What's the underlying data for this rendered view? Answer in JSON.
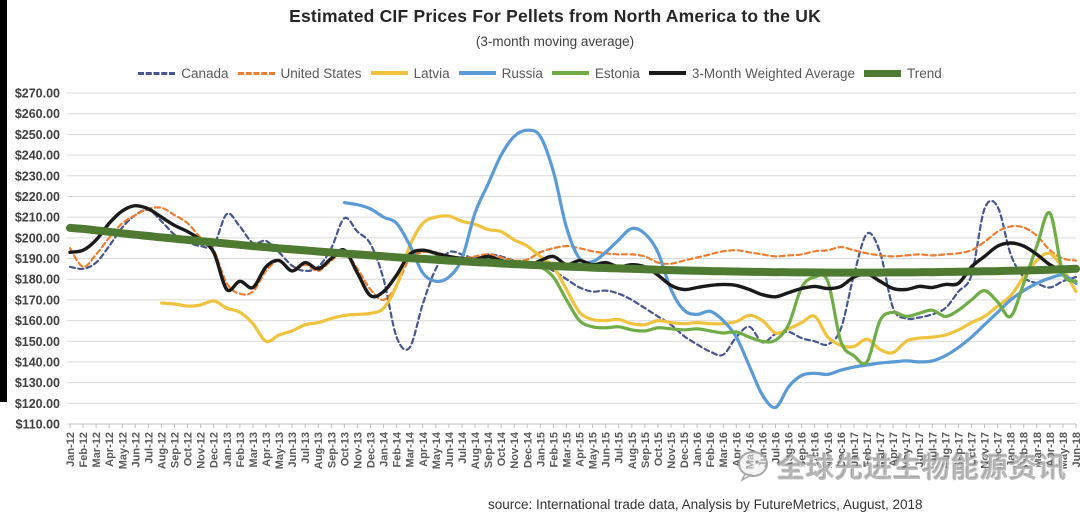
{
  "header": {
    "title": "Estimated CIF Prices For Pellets from North America to the UK",
    "subtitle": "(3-month moving average)"
  },
  "footer": {
    "source": "source: International trade data, Analysis by FutureMetrics, August, 2018"
  },
  "watermark": {
    "icon": "wechat-bubble-icon",
    "text": "全球先进生物能源资讯"
  },
  "chart_data": {
    "type": "line",
    "title": "Estimated CIF Prices For Pellets from North America to the UK",
    "subtitle": "(3-month moving average)",
    "legend_position": "top",
    "grid": true,
    "gridline_color": "#d9d9d9",
    "axis_text_color": "#595959",
    "ylim": [
      110,
      270
    ],
    "y_step": 10,
    "y_labels": [
      "$270.00",
      "$260.00",
      "$250.00",
      "$240.00",
      "$230.00",
      "$220.00",
      "$210.00",
      "$200.00",
      "$190.00",
      "$180.00",
      "$170.00",
      "$160.00",
      "$150.00",
      "$140.00",
      "$130.00",
      "$120.00",
      "$110.00"
    ],
    "x": [
      "Jan-12",
      "Feb-12",
      "Mar-12",
      "Apr-12",
      "May-12",
      "Jun-12",
      "Jul-12",
      "Aug-12",
      "Sep-12",
      "Oct-12",
      "Nov-12",
      "Dec-12",
      "Jan-13",
      "Feb-13",
      "Mar-13",
      "Apr-13",
      "May-13",
      "Jun-13",
      "Jul-13",
      "Aug-13",
      "Sep-13",
      "Oct-13",
      "Nov-13",
      "Dec-13",
      "Jan-14",
      "Feb-14",
      "Mar-14",
      "Apr-14",
      "May-14",
      "Jun-14",
      "Jul-14",
      "Aug-14",
      "Sep-14",
      "Oct-14",
      "Nov-14",
      "Dec-14",
      "Jan-15",
      "Feb-15",
      "Mar-15",
      "Apr-15",
      "May-15",
      "Jun-15",
      "Jul-15",
      "Aug-15",
      "Sep-15",
      "Oct-15",
      "Nov-15",
      "Dec-15",
      "Jan-16",
      "Feb-16",
      "Mar-16",
      "Apr-16",
      "May-16",
      "Jun-16",
      "Jul-16",
      "Aug-16",
      "Sep-16",
      "Oct-16",
      "Nov-16",
      "Dec-16",
      "Jan-17",
      "Feb-17",
      "Mar-17",
      "Apr-17",
      "May-17",
      "Jun-17",
      "Jul-17",
      "Aug-17",
      "Sep-17",
      "Oct-17",
      "Nov-17",
      "Dec-17",
      "Jan-18",
      "Feb-18",
      "Mar-18",
      "Apr-18",
      "May-18",
      "Jun-18"
    ],
    "series": [
      {
        "name": "Canada",
        "color": "#47568c",
        "dash": true,
        "width": 2.2,
        "values": [
          186,
          185,
          188,
          196,
          205,
          211,
          213.5,
          208,
          201.5,
          198,
          196,
          196.5,
          211.5,
          205.5,
          197.5,
          198.5,
          193,
          186.5,
          184,
          186,
          195,
          209.5,
          203,
          197,
          180,
          152,
          147,
          168,
          185,
          193,
          192,
          190,
          192,
          191,
          189,
          188,
          187,
          184,
          180,
          176,
          174,
          174.5,
          173,
          170,
          166,
          162,
          158,
          152.5,
          148.5,
          145,
          143.5,
          152,
          157,
          149.5,
          153.5,
          154.5,
          151.5,
          150,
          148.5,
          156,
          182,
          202,
          193,
          166,
          161,
          161.5,
          163,
          166,
          174,
          182,
          214,
          215,
          192,
          181,
          178,
          176,
          179,
          181
        ]
      },
      {
        "name": "United States",
        "color": "#ed7d31",
        "dash": true,
        "width": 2.2,
        "values": [
          195,
          186,
          192,
          200,
          207,
          211,
          214,
          214.5,
          211,
          207,
          200,
          194,
          178,
          173,
          174,
          184,
          189,
          184,
          187,
          184,
          189,
          193,
          185,
          175,
          170,
          177,
          190,
          193,
          193,
          191,
          190,
          191,
          192,
          190.5,
          189,
          189.5,
          193,
          195,
          196,
          195,
          193.5,
          192.5,
          192,
          192,
          191,
          188,
          187.5,
          189,
          190.5,
          192,
          193.5,
          194,
          193,
          192,
          191,
          191.5,
          192,
          193.5,
          194,
          195.5,
          194,
          192.5,
          191.5,
          191,
          191.5,
          192,
          191.5,
          192,
          192.5,
          194,
          198,
          203,
          205.5,
          205,
          201,
          194,
          190,
          189
        ]
      },
      {
        "name": "Latvia",
        "color": "#f0c33e",
        "dash": false,
        "width": 3.2,
        "values": [
          null,
          null,
          null,
          null,
          null,
          null,
          null,
          168.5,
          168,
          167,
          167.5,
          169.5,
          166,
          164,
          158.5,
          150,
          153,
          155,
          158,
          159,
          161,
          162.5,
          163,
          163.5,
          166,
          177,
          196,
          207,
          210,
          210.5,
          208,
          206.5,
          204,
          203,
          199,
          196,
          191,
          186,
          175,
          164,
          160.5,
          160,
          160.5,
          158.5,
          158,
          160,
          159,
          158.5,
          159,
          158.5,
          158.5,
          159.5,
          162.5,
          160,
          154,
          156,
          159,
          162,
          152,
          148,
          147.5,
          151,
          146,
          144.5,
          150,
          151.5,
          152,
          153,
          155.5,
          159,
          162,
          167,
          172,
          181,
          189,
          192.5,
          185,
          174
        ]
      },
      {
        "name": "Russia",
        "color": "#5b9bd5",
        "dash": false,
        "width": 3.2,
        "values": [
          null,
          null,
          null,
          null,
          null,
          null,
          null,
          null,
          null,
          null,
          null,
          null,
          null,
          null,
          null,
          null,
          null,
          null,
          null,
          null,
          null,
          217,
          216,
          214,
          210,
          207,
          196.5,
          183,
          179,
          181,
          190,
          212,
          226,
          240,
          249,
          252,
          249,
          232,
          205,
          190,
          188.5,
          193,
          199,
          204.5,
          202,
          193,
          175,
          165,
          163,
          164.5,
          160,
          152,
          138,
          124,
          118,
          128,
          133.5,
          134.5,
          134,
          136,
          137.5,
          138.5,
          139.5,
          140,
          140.5,
          140,
          140.5,
          143,
          147,
          152,
          158,
          164,
          170,
          174.5,
          178,
          180.5,
          182,
          178
        ]
      },
      {
        "name": "Estonia",
        "color": "#70ad47",
        "dash": false,
        "width": 3.2,
        "values": [
          null,
          null,
          null,
          null,
          null,
          null,
          null,
          null,
          null,
          null,
          null,
          null,
          null,
          null,
          null,
          null,
          null,
          null,
          null,
          null,
          null,
          null,
          null,
          null,
          null,
          null,
          null,
          null,
          191,
          190,
          189.5,
          189,
          190,
          189,
          188.5,
          188,
          186,
          181,
          170,
          160,
          157,
          156.5,
          157,
          155.5,
          155,
          156.5,
          156,
          155.5,
          156,
          155,
          154,
          154.5,
          152,
          150,
          150.5,
          158,
          176,
          181,
          179,
          150,
          143,
          140,
          160,
          164,
          162,
          163.5,
          165,
          162,
          165,
          170,
          174.5,
          169,
          162,
          178,
          196,
          212,
          183,
          179
        ]
      },
      {
        "name": "3-Month Weighted Average",
        "color": "#1a1a1a",
        "dash": false,
        "width": 3.4,
        "values": [
          193,
          194,
          199,
          207,
          213,
          215.5,
          214,
          210,
          206,
          203,
          199,
          193,
          175,
          179,
          176,
          186,
          189,
          184,
          188,
          185,
          190,
          194,
          183,
          172,
          174,
          182,
          192,
          194,
          192.5,
          191,
          190,
          189.5,
          191,
          189,
          187.5,
          186.5,
          189,
          191,
          187,
          189,
          187,
          188,
          186,
          187,
          186,
          182,
          177,
          175,
          176,
          177,
          177.5,
          177,
          175,
          172.5,
          171.5,
          173.5,
          175.5,
          176.5,
          175.5,
          176.5,
          181,
          182.5,
          179,
          175.5,
          175,
          176.5,
          176,
          177.5,
          178,
          186,
          191,
          196,
          197.5,
          196,
          192,
          187,
          184.5,
          184.5
        ]
      },
      {
        "name": "Trend",
        "color": "#4f7a32",
        "dash": false,
        "width": 8,
        "values": [
          204.8,
          204.3,
          203.6,
          202.9,
          202.2,
          201.5,
          200.9,
          200.2,
          199.6,
          199.0,
          198.4,
          197.8,
          197.2,
          196.6,
          196.0,
          195.5,
          194.9,
          194.4,
          193.9,
          193.4,
          192.9,
          192.4,
          192.0,
          191.5,
          191.1,
          190.6,
          190.2,
          189.8,
          189.4,
          189.0,
          188.7,
          188.3,
          188.0,
          187.6,
          187.3,
          187.0,
          186.7,
          186.4,
          186.1,
          185.9,
          185.6,
          185.4,
          185.2,
          185.0,
          184.8,
          184.6,
          184.4,
          184.2,
          184.1,
          183.9,
          183.8,
          183.7,
          183.6,
          183.5,
          183.4,
          183.4,
          183.3,
          183.3,
          183.2,
          183.2,
          183.2,
          183.2,
          183.2,
          183.3,
          183.3,
          183.4,
          183.4,
          183.5,
          183.6,
          183.7,
          183.8,
          183.9,
          184.1,
          184.2,
          184.4,
          184.6,
          184.8,
          185.0
        ]
      }
    ]
  }
}
